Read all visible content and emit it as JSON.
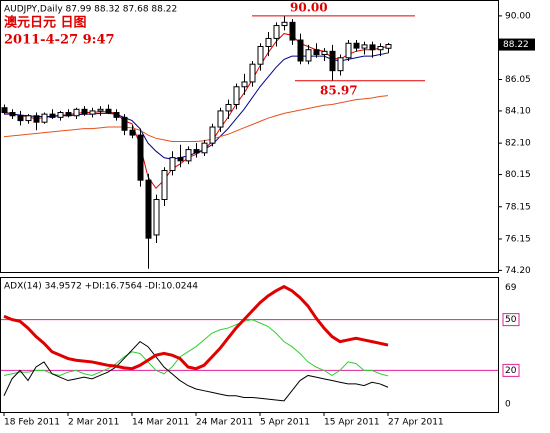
{
  "chart_data": [
    {
      "type": "candlestick",
      "header": "AUDJPY,Daily  87.99 88.32 87.68 88.22",
      "title": "澳元日元 日图",
      "subtitle": "2011-4-27 9:47",
      "open": [
        84.3,
        84.0,
        83.8,
        83.5,
        83.8,
        83.4,
        83.9,
        83.7,
        84.0,
        83.8,
        84.2,
        83.9,
        84.1,
        84.2,
        84.0,
        83.7,
        82.9,
        82.6,
        79.8,
        76.4,
        78.6,
        80.4,
        81.2,
        81.0,
        81.7,
        81.5,
        82.1,
        83.1,
        84.1,
        84.5,
        85.6,
        85.9,
        87.0,
        88.1,
        88.6,
        89.4,
        89.6,
        88.5,
        87.2,
        87.9,
        87.6,
        87.8,
        86.6,
        87.4,
        88.3,
        88.0,
        88.2,
        87.9,
        87.99
      ],
      "high": [
        84.5,
        84.2,
        84.1,
        83.9,
        84.0,
        84.0,
        84.2,
        84.1,
        84.2,
        84.3,
        84.4,
        84.3,
        84.4,
        84.5,
        84.2,
        83.9,
        83.2,
        83.0,
        80.2,
        78.9,
        80.6,
        81.6,
        82.0,
        81.9,
        82.1,
        82.3,
        83.3,
        84.3,
        84.8,
        85.8,
        86.4,
        87.2,
        88.3,
        89.0,
        89.6,
        90.0,
        89.8,
        88.9,
        88.2,
        88.3,
        88.0,
        88.2,
        87.6,
        88.5,
        88.5,
        88.4,
        88.4,
        88.3,
        88.32
      ],
      "low": [
        83.9,
        83.6,
        83.2,
        83.3,
        82.9,
        83.3,
        83.6,
        83.5,
        83.7,
        83.6,
        83.8,
        83.7,
        83.8,
        83.9,
        83.5,
        82.6,
        82.4,
        79.4,
        74.3,
        75.9,
        78.2,
        80.1,
        80.6,
        80.8,
        81.2,
        81.3,
        81.9,
        82.8,
        83.6,
        84.2,
        85.1,
        85.6,
        86.6,
        87.5,
        88.1,
        89.1,
        88.2,
        87.0,
        87.0,
        87.4,
        87.2,
        85.97,
        86.3,
        87.2,
        87.8,
        87.6,
        87.4,
        87.5,
        87.68
      ],
      "close": [
        84.0,
        83.8,
        83.5,
        83.8,
        83.4,
        83.9,
        83.7,
        84.0,
        83.8,
        84.2,
        83.9,
        84.1,
        84.2,
        84.0,
        83.7,
        82.9,
        82.6,
        79.8,
        76.2,
        78.6,
        80.4,
        81.2,
        81.0,
        81.7,
        81.5,
        82.1,
        83.1,
        84.1,
        84.5,
        85.6,
        85.9,
        87.0,
        88.1,
        88.6,
        89.4,
        89.6,
        88.5,
        87.2,
        87.9,
        87.6,
        87.8,
        86.6,
        87.4,
        88.3,
        88.0,
        88.2,
        87.9,
        88.1,
        88.22
      ],
      "up_color": "#ffffff",
      "down_color": "#000000",
      "series": [
        {
          "color": "#e00000",
          "values": [
            84.0,
            83.95,
            83.8,
            83.75,
            83.6,
            83.7,
            83.75,
            83.85,
            83.85,
            83.95,
            84.0,
            84.0,
            84.05,
            84.05,
            83.95,
            83.5,
            83.3,
            82.0,
            80.0,
            79.3,
            79.8,
            80.5,
            80.8,
            81.2,
            81.4,
            81.7,
            82.2,
            83.0,
            83.7,
            84.5,
            85.2,
            86.0,
            86.9,
            87.7,
            88.4,
            88.9,
            88.8,
            88.3,
            88.1,
            87.9,
            87.8,
            87.4,
            87.3,
            87.6,
            87.8,
            87.9,
            87.9,
            88.0,
            88.1
          ]
        },
        {
          "color": "#00008b",
          "values": [
            83.9,
            83.9,
            83.85,
            83.8,
            83.75,
            83.75,
            83.75,
            83.8,
            83.8,
            83.85,
            83.9,
            83.9,
            83.95,
            83.95,
            83.9,
            83.7,
            83.5,
            83.0,
            82.1,
            81.6,
            81.2,
            81.1,
            81.2,
            81.3,
            81.5,
            81.7,
            82.0,
            82.5,
            83.0,
            83.6,
            84.2,
            84.9,
            85.6,
            86.2,
            86.8,
            87.3,
            87.5,
            87.5,
            87.5,
            87.5,
            87.5,
            87.3,
            87.2,
            87.3,
            87.4,
            87.5,
            87.5,
            87.6,
            87.7
          ]
        },
        {
          "color": "#e8501e",
          "values": [
            82.5,
            82.55,
            82.6,
            82.65,
            82.7,
            82.75,
            82.8,
            82.85,
            82.9,
            82.95,
            83.0,
            83.0,
            83.05,
            83.1,
            83.1,
            83.1,
            83.05,
            82.9,
            82.6,
            82.4,
            82.3,
            82.2,
            82.2,
            82.2,
            82.2,
            82.25,
            82.35,
            82.5,
            82.65,
            82.85,
            83.05,
            83.25,
            83.45,
            83.65,
            83.8,
            83.95,
            84.05,
            84.15,
            84.25,
            84.35,
            84.45,
            84.5,
            84.6,
            84.7,
            84.8,
            84.85,
            84.9,
            85.0,
            85.05
          ]
        }
      ],
      "ylim": [
        74.1,
        90.8
      ],
      "yticks": [
        {
          "value": 90,
          "label": "90.00"
        },
        {
          "value": 86.05,
          "label": "86.05"
        },
        {
          "value": 84.1,
          "label": "84.10"
        },
        {
          "value": 82.1,
          "label": "82.10"
        },
        {
          "value": 80.15,
          "label": "80.15"
        },
        {
          "value": 78.15,
          "label": "78.15"
        },
        {
          "value": 76.15,
          "label": "76.15"
        },
        {
          "value": 74.2,
          "label": "74.20"
        }
      ],
      "price_label": {
        "value": 88.22,
        "label": "88.22"
      },
      "annotations": [
        {
          "value": 90,
          "label": "90.00"
        },
        {
          "value": 85.97,
          "label": "85.97"
        }
      ],
      "annotation_color": "#e00000"
    },
    {
      "type": "line",
      "header": "ADX(14) 34.9572 +DI:16.7564 -DI:10.0244",
      "categories": [
        "18 Feb 2011",
        null,
        null,
        null,
        null,
        null,
        null,
        null,
        "2 Mar 2011",
        null,
        null,
        null,
        null,
        null,
        null,
        null,
        "14 Mar 2011",
        null,
        null,
        null,
        null,
        null,
        null,
        null,
        "24 Mar 2011",
        null,
        null,
        null,
        null,
        null,
        null,
        null,
        "5 Apr 2011",
        null,
        null,
        null,
        null,
        null,
        null,
        null,
        "15 Apr 2011",
        null,
        null,
        null,
        null,
        null,
        null,
        null,
        "27 Apr 2011"
      ],
      "series": [
        {
          "color": "#32cd32",
          "width": 1,
          "values": [
            17,
            18,
            19,
            19,
            20,
            20,
            18,
            17,
            19,
            20,
            18,
            17,
            19,
            21,
            24,
            28,
            31,
            30,
            25,
            20,
            18,
            22,
            28,
            31,
            34,
            38,
            42,
            44,
            45,
            47,
            49,
            50,
            48,
            46,
            42,
            37,
            34,
            30,
            25,
            22,
            20,
            17,
            20,
            25,
            24,
            20,
            20,
            18,
            16.7564
          ]
        },
        {
          "color": "#000000",
          "width": 1,
          "values": [
            5,
            15,
            20,
            14,
            22,
            25,
            18,
            16,
            14,
            15,
            16,
            15,
            17,
            19,
            22,
            27,
            32,
            37,
            34,
            28,
            22,
            18,
            14,
            11,
            9,
            8,
            7,
            6,
            5,
            5,
            4,
            4,
            3.5,
            3,
            2.5,
            2,
            8,
            14,
            17,
            16,
            15,
            14,
            13,
            12,
            12,
            11,
            13,
            12,
            10.0244
          ]
        },
        {
          "color": "#e00000",
          "width": 3,
          "values": [
            52,
            50,
            49,
            45,
            40,
            36,
            31,
            29,
            27,
            26,
            25.5,
            25,
            24,
            23,
            22.5,
            21.5,
            21,
            23,
            26,
            29,
            30,
            29,
            27,
            22,
            21,
            23,
            28,
            33,
            39,
            45,
            50,
            55,
            60,
            64,
            67,
            69.5,
            67,
            63,
            58,
            51,
            45,
            40,
            37,
            38,
            39,
            38,
            37,
            36,
            34.9572
          ]
        }
      ],
      "levels": [
        50,
        20
      ],
      "level_color": "#e0209a",
      "ylim": [
        -4,
        74
      ],
      "yticks": [
        69,
        50,
        20,
        0
      ]
    }
  ]
}
